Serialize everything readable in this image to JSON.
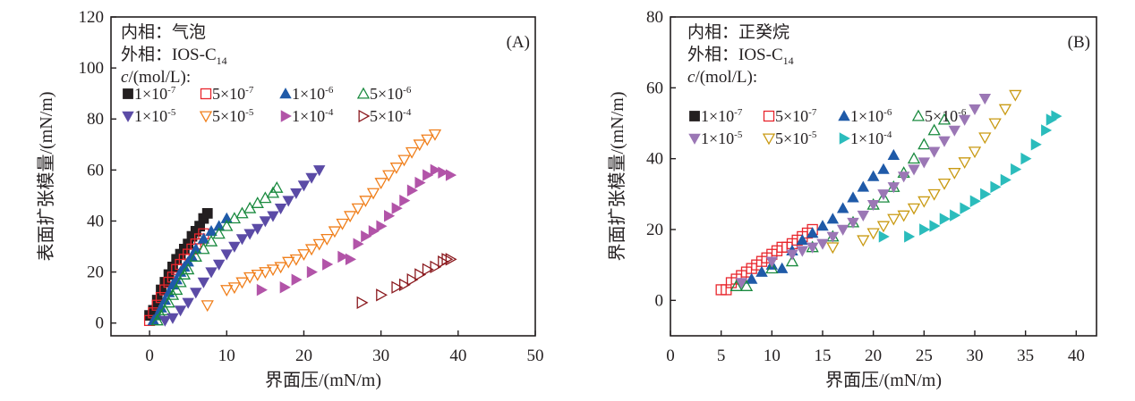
{
  "chart_data": [
    {
      "type": "scatter",
      "panel_label": "(A)",
      "xlabel": "界面压/(mN/m)",
      "ylabel": "表面扩张模量/(mN/m)",
      "xlim": [
        -5,
        50
      ],
      "ylim": [
        -5,
        120
      ],
      "xticks": [
        0,
        10,
        20,
        30,
        40,
        50
      ],
      "yticks": [
        0,
        20,
        40,
        60,
        80,
        100,
        120
      ],
      "grid": false,
      "annotations": [
        "内相：气泡",
        "外相：IOS-C",
        "14",
        "c",
        "/(mol/L):"
      ],
      "legend_placement": "top-left",
      "series": [
        {
          "name": "1×10-7",
          "base": "1×10",
          "exp": "-7",
          "marker": "square",
          "filled": true,
          "color": "#231f20",
          "x": [
            0,
            0.5,
            1,
            1.5,
            2,
            2.5,
            3,
            3.5,
            4,
            4.5,
            5,
            5.5,
            6,
            6.5,
            7,
            7.5
          ],
          "y": [
            3,
            5,
            9,
            13,
            16,
            19,
            22,
            25,
            27,
            29,
            31,
            34,
            36,
            38,
            41,
            43
          ]
        },
        {
          "name": "5×10-7",
          "base": "5×10",
          "exp": "-7",
          "marker": "square",
          "filled": false,
          "color": "#e8262d",
          "x": [
            0,
            0.5,
            1,
            1.5,
            2,
            2.5,
            3,
            3.5,
            4,
            4.5,
            5,
            5.5,
            6,
            6.5,
            7
          ],
          "y": [
            1,
            4,
            7,
            10,
            13,
            16,
            18,
            21,
            23,
            25,
            27,
            29,
            31,
            33,
            35
          ]
        },
        {
          "name": "1×10-6",
          "base": "1×10",
          "exp": "-6",
          "marker": "triangle-up",
          "filled": true,
          "color": "#1f5aa8",
          "x": [
            0.5,
            1,
            1.5,
            2,
            2.5,
            3,
            3.5,
            4,
            4.5,
            5,
            5.5,
            6,
            7,
            8,
            9,
            10
          ],
          "y": [
            1,
            3,
            6,
            9,
            12,
            15,
            17,
            20,
            22,
            24,
            26,
            29,
            33,
            36,
            38,
            41
          ]
        },
        {
          "name": "5×10-6",
          "base": "5×10",
          "exp": "-6",
          "marker": "triangle-up",
          "filled": false,
          "color": "#1a8a3f",
          "x": [
            1,
            1.5,
            2,
            2.5,
            3,
            3.5,
            4,
            4.5,
            5,
            6,
            7,
            8,
            9,
            10,
            11,
            12,
            13,
            14,
            15,
            16,
            16.5
          ],
          "y": [
            1,
            3,
            5,
            8,
            11,
            13,
            16,
            19,
            21,
            26,
            29,
            32,
            35,
            38,
            41,
            43,
            45,
            47,
            49,
            51,
            53
          ]
        },
        {
          "name": "1×10-5",
          "base": "1×10",
          "exp": "-5",
          "marker": "triangle-down",
          "filled": true,
          "color": "#5b4ba6",
          "x": [
            2,
            3,
            4,
            5,
            6,
            7,
            8,
            9,
            10,
            11,
            12,
            13,
            14,
            15,
            16,
            17,
            18,
            19,
            20,
            21,
            22
          ],
          "y": [
            1,
            2,
            5,
            8,
            12,
            16,
            20,
            23,
            27,
            30,
            33,
            35,
            37,
            40,
            42,
            45,
            48,
            51,
            54,
            57,
            60
          ]
        },
        {
          "name": "5×10-5",
          "base": "5×10",
          "exp": "-5",
          "marker": "triangle-down",
          "filled": false,
          "color": "#f07f1b",
          "x": [
            7.5,
            10,
            11,
            12,
            13,
            14,
            15,
            16,
            17,
            18,
            19,
            20,
            21,
            22,
            23,
            24,
            25,
            26,
            27,
            28,
            29,
            30,
            31,
            32,
            33,
            34,
            35,
            36,
            37
          ],
          "y": [
            7,
            13,
            14,
            16,
            18,
            19,
            20,
            21,
            22,
            24,
            25,
            27,
            29,
            31,
            33,
            36,
            39,
            42,
            45,
            48,
            51,
            55,
            58,
            61,
            64,
            67,
            70,
            72,
            74
          ]
        },
        {
          "name": "1×10-4",
          "base": "1×10",
          "exp": "-4",
          "marker": "triangle-right",
          "filled": true,
          "color": "#b254a8",
          "x": [
            14.5,
            17.5,
            19,
            21,
            23,
            25,
            26,
            27,
            28,
            29,
            30,
            31,
            32,
            33,
            34,
            35,
            36,
            37,
            38,
            39
          ],
          "y": [
            13,
            14,
            17,
            20,
            23,
            26,
            25,
            31,
            34,
            36,
            38,
            42,
            45,
            48,
            52,
            55,
            58,
            60,
            59,
            58
          ]
        },
        {
          "name": "5×10-4",
          "base": "5×10",
          "exp": "-4",
          "marker": "triangle-right",
          "filled": false,
          "color": "#8b1a1f",
          "x": [
            27.5,
            30,
            32,
            33,
            34,
            35,
            36,
            37,
            38,
            38.5,
            39
          ],
          "y": [
            8,
            11,
            14,
            15,
            17,
            19,
            21,
            22,
            24,
            25,
            25
          ]
        }
      ]
    },
    {
      "type": "scatter",
      "panel_label": "(B)",
      "xlabel": "界面压/(mN/m)",
      "ylabel": "界面扩张模量/(mN/m)",
      "xlim": [
        0,
        42
      ],
      "ylim": [
        -10,
        80
      ],
      "xticks": [
        0,
        5,
        10,
        15,
        20,
        25,
        30,
        35,
        40
      ],
      "yticks": [
        0,
        20,
        40,
        60,
        80
      ],
      "grid": false,
      "annotations": [
        "内相：正癸烷",
        "外相：IOS-C",
        "14",
        "c",
        "/(mol/L):"
      ],
      "legend_placement": "top-left",
      "series": [
        {
          "name": "1×10-7",
          "base": "1×10",
          "exp": "-7",
          "marker": "square",
          "filled": true,
          "color": "#231f20",
          "x": [],
          "y": []
        },
        {
          "name": "5×10-7",
          "base": "5×10",
          "exp": "-7",
          "marker": "square",
          "filled": false,
          "color": "#e8262d",
          "x": [
            5,
            5.5,
            6,
            6.5,
            7,
            7.5,
            8,
            8.5,
            9,
            9.5,
            10,
            10.5,
            11,
            11.5,
            12,
            12.5,
            13,
            13.5,
            14
          ],
          "y": [
            3,
            3,
            5,
            6,
            7,
            8,
            9,
            10,
            11,
            12,
            13,
            14,
            15,
            15,
            16,
            17,
            18,
            19,
            20
          ]
        },
        {
          "name": "1×10-6",
          "base": "1×10",
          "exp": "-6",
          "marker": "triangle-up",
          "filled": true,
          "color": "#1f5aa8",
          "x": [
            8,
            9,
            10,
            11,
            12,
            13,
            14,
            15,
            16,
            17,
            18,
            19,
            20,
            21,
            22
          ],
          "y": [
            6,
            8,
            10,
            9,
            14,
            17,
            19,
            21,
            23,
            26,
            29,
            32,
            35,
            37,
            41
          ]
        },
        {
          "name": "5×10-6",
          "base": "5×10",
          "exp": "-6",
          "marker": "triangle-up",
          "filled": false,
          "color": "#1a8a3f",
          "x": [
            6.5,
            7.5,
            10,
            12,
            14,
            16,
            18,
            20,
            21,
            22,
            23,
            24,
            25,
            26,
            27
          ],
          "y": [
            4,
            4,
            9,
            11,
            15,
            18,
            22,
            27,
            29,
            32,
            36,
            40,
            44,
            48,
            51
          ]
        },
        {
          "name": "1×10-5",
          "base": "1×10",
          "exp": "-5",
          "marker": "triangle-down",
          "filled": true,
          "color": "#9b77b5",
          "x": [
            7,
            10,
            12,
            13,
            14,
            15,
            16,
            17,
            18,
            19,
            20,
            21,
            22,
            23,
            24,
            25,
            26,
            27,
            28,
            29,
            30,
            31
          ],
          "y": [
            5,
            11,
            13,
            14,
            15,
            16,
            18,
            20,
            22,
            24,
            27,
            30,
            32,
            35,
            37,
            39,
            42,
            45,
            48,
            51,
            54,
            57
          ]
        },
        {
          "name": "5×10-5",
          "base": "5×10",
          "exp": "-5",
          "marker": "triangle-down",
          "filled": false,
          "color": "#c99a12",
          "x": [
            16,
            19,
            20,
            21,
            22,
            23,
            24,
            25,
            26,
            27,
            28,
            29,
            30,
            31,
            32,
            33,
            34
          ],
          "y": [
            15,
            17,
            19,
            21,
            23,
            24,
            26,
            28,
            30,
            33,
            36,
            39,
            42,
            46,
            50,
            54,
            58
          ]
        },
        {
          "name": "1×10-4",
          "base": "1×10",
          "exp": "-4",
          "marker": "triangle-right",
          "filled": true,
          "color": "#2bbcbc",
          "x": [
            21,
            23.5,
            25,
            26,
            27,
            28,
            29,
            30,
            31,
            32,
            33,
            34,
            35,
            36,
            37,
            37.5,
            38
          ],
          "y": [
            18,
            18,
            20,
            21,
            23,
            24,
            26,
            28,
            30,
            32,
            34,
            37,
            40,
            44,
            48,
            51,
            52
          ]
        }
      ]
    }
  ]
}
